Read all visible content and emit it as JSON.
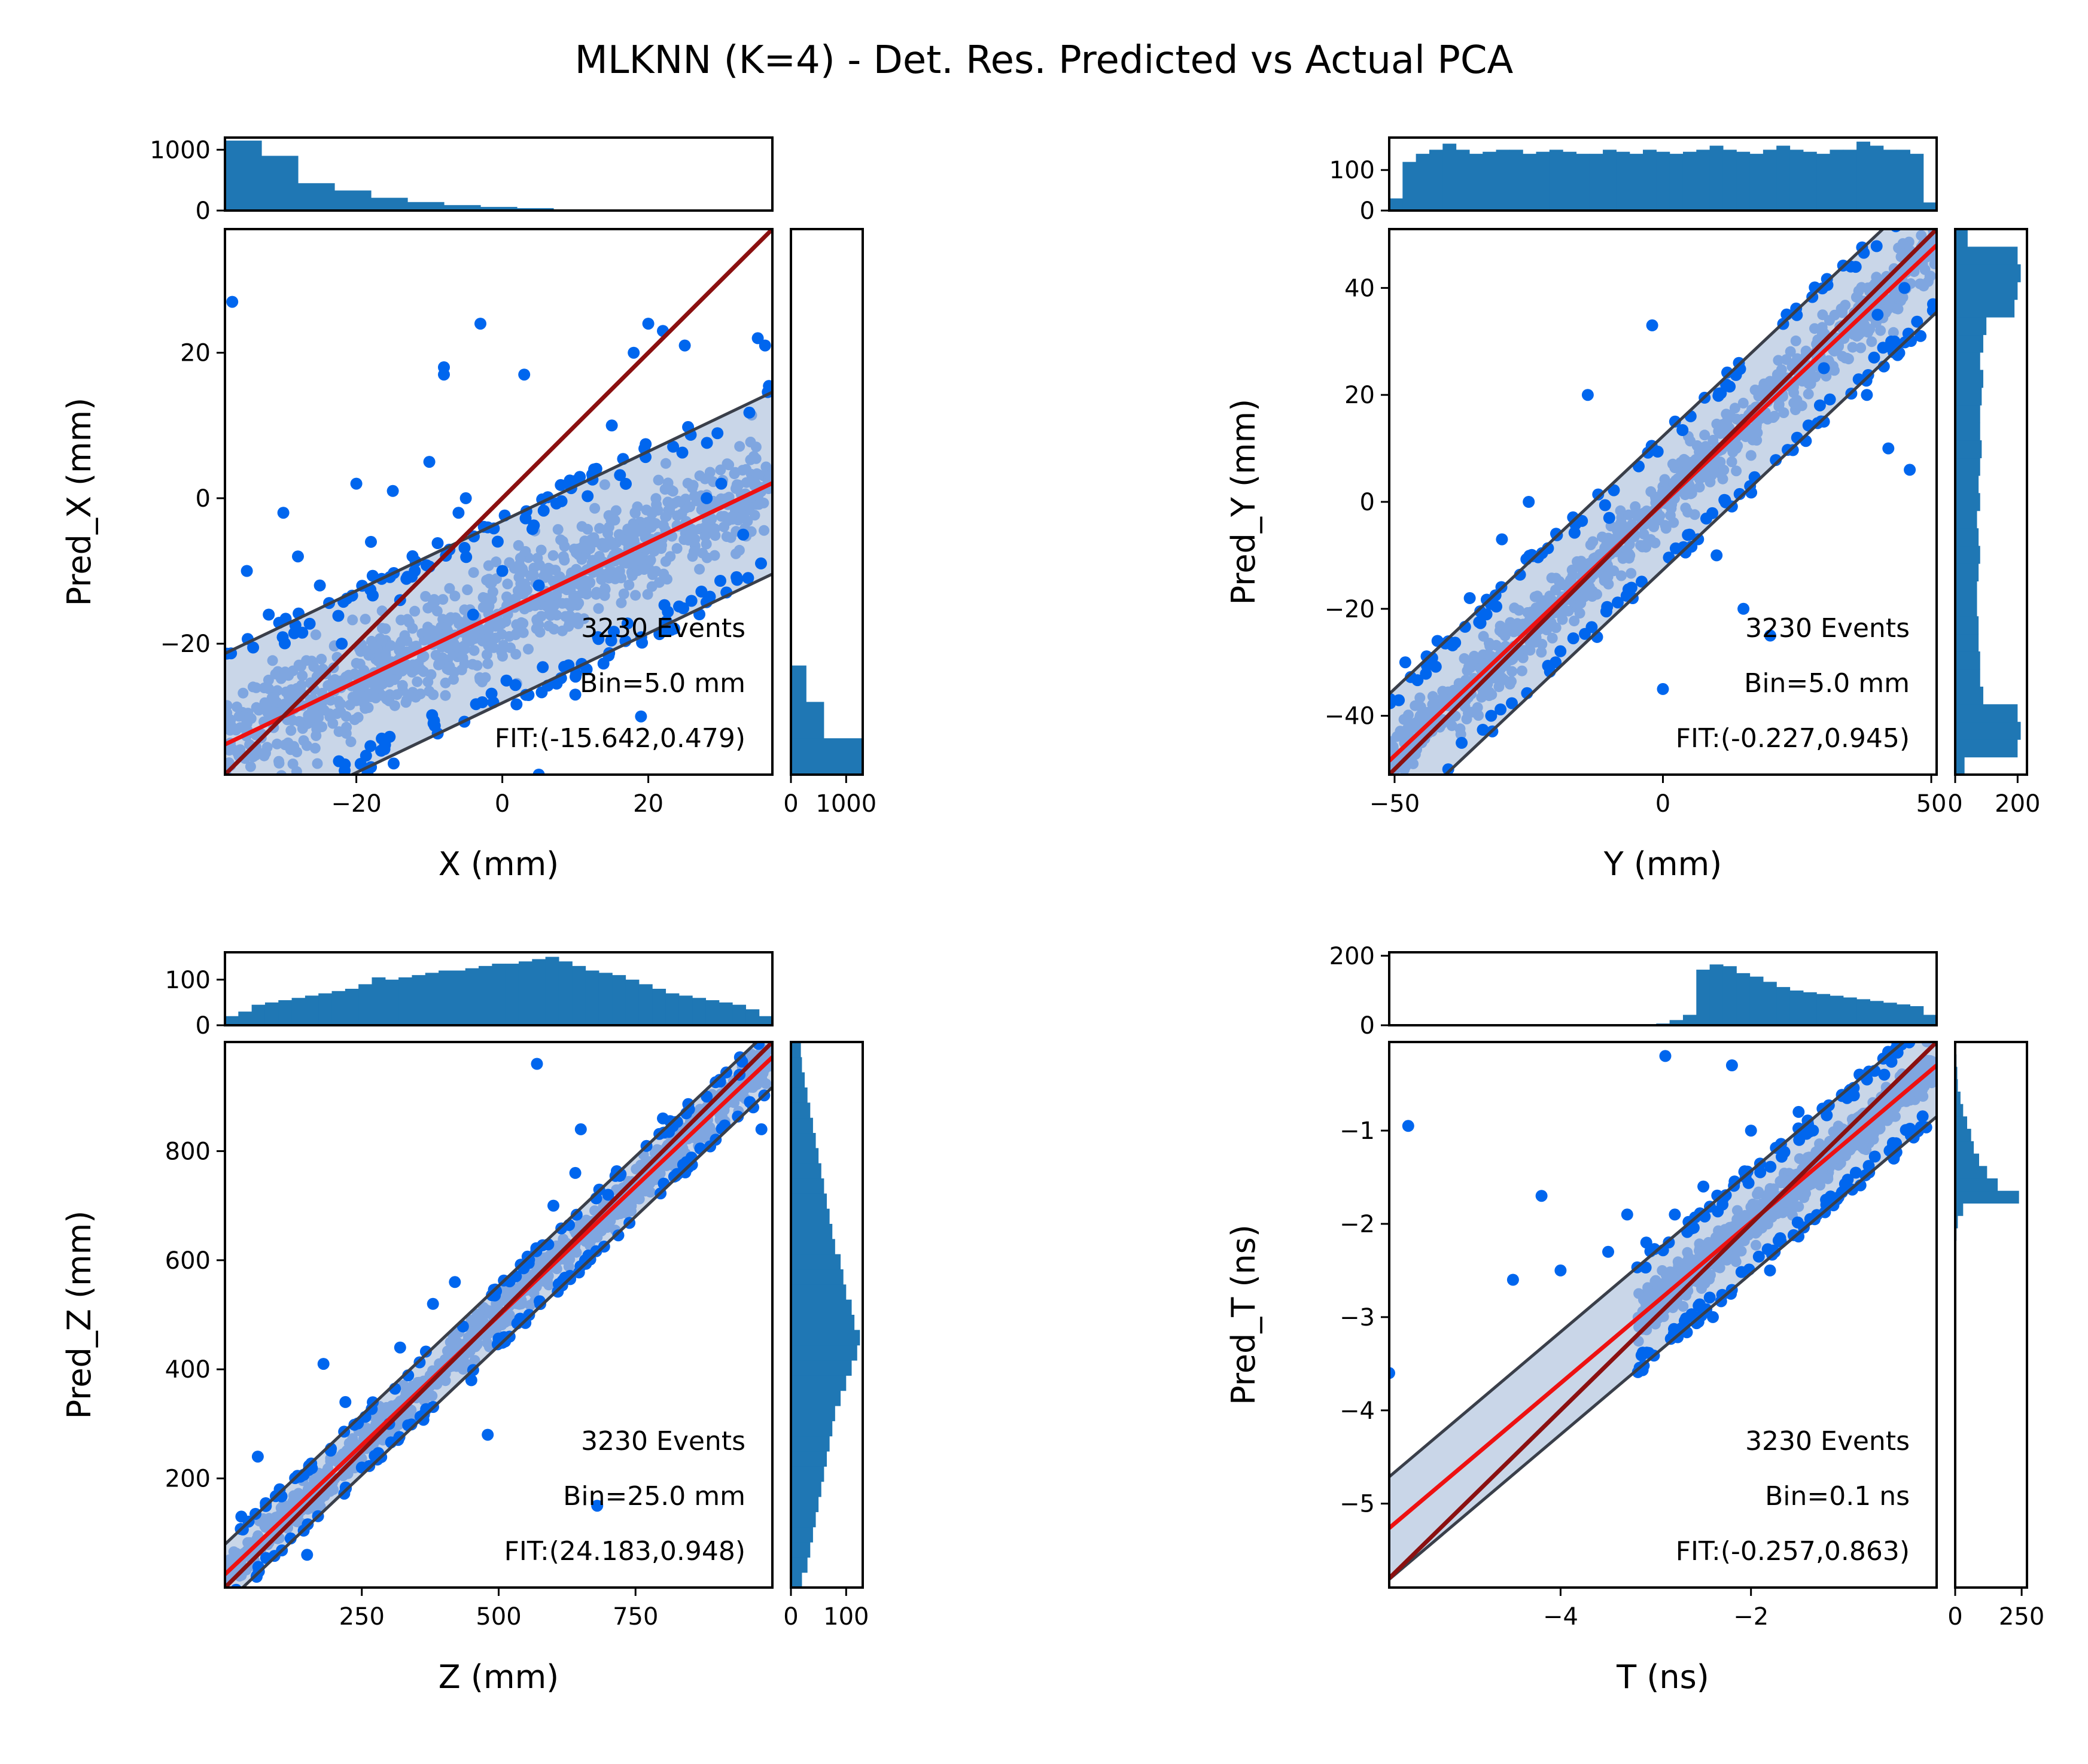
{
  "title": "MLKNN (K=4) - Det. Res. Predicted vs Actual PCA",
  "colors": {
    "hist": "#1f77b4",
    "points": "#0066ee",
    "band_points": "#7fa6e0",
    "band_fill": "#c9d6e8",
    "band_edge": "#3a3f4a",
    "fit_line": "#ee1111",
    "identity_line": "#8b1010"
  },
  "chart_data": [
    {
      "type": "scatter",
      "id": "x",
      "xlabel": "X (mm)",
      "ylabel": "Pred_X (mm)",
      "xlim": [
        -38,
        37
      ],
      "ylim": [
        -38,
        37
      ],
      "xticks": [
        -20,
        0,
        20
      ],
      "yticks": [
        -20,
        0,
        20
      ],
      "annotation": [
        "3230 Events",
        "Bin=5.0 mm",
        "FIT:(-15.642,0.479)"
      ],
      "fit": {
        "intercept": -15.642,
        "slope": 0.479
      },
      "band_halfwidth": 12.5,
      "top_hist": {
        "ylim": [
          0,
          1200
        ],
        "yticks": [
          0,
          1000
        ],
        "values": [
          1150,
          900,
          450,
          330,
          210,
          140,
          90,
          60,
          40,
          20,
          8,
          4,
          2,
          1,
          0
        ]
      },
      "right_hist": {
        "xlim": [
          0,
          1300
        ],
        "xticks": [
          0,
          1000
        ],
        "values": [
          1300,
          600,
          280,
          0,
          0,
          0,
          0,
          0,
          0,
          0,
          0,
          0,
          0,
          0,
          0
        ]
      },
      "spread": 5,
      "outliers": [
        [
          -37,
          27
        ],
        [
          -30,
          -2
        ],
        [
          -25,
          -12
        ],
        [
          -20,
          2
        ],
        [
          -18,
          -6
        ],
        [
          -15,
          1
        ],
        [
          -12,
          -10
        ],
        [
          -10,
          5
        ],
        [
          -8,
          18
        ],
        [
          -8,
          17
        ],
        [
          -6,
          -2
        ],
        [
          -5,
          0
        ],
        [
          -3,
          24
        ],
        [
          -2,
          -4
        ],
        [
          0,
          -10
        ],
        [
          3,
          17
        ],
        [
          5,
          -12
        ],
        [
          5,
          -38
        ],
        [
          10,
          -27
        ],
        [
          15,
          10
        ],
        [
          18,
          20
        ],
        [
          19,
          -30
        ],
        [
          20,
          24
        ],
        [
          22,
          23
        ],
        [
          25,
          21
        ],
        [
          28,
          0
        ],
        [
          30,
          2
        ],
        [
          35,
          22
        ],
        [
          36,
          21
        ],
        [
          33,
          -5
        ],
        [
          -35,
          -10
        ],
        [
          -32,
          -16
        ],
        [
          -28,
          -8
        ],
        [
          -22,
          -20
        ],
        [
          -14,
          -14
        ],
        [
          -4,
          -16
        ]
      ]
    },
    {
      "type": "scatter",
      "id": "y",
      "xlabel": "Y (mm)",
      "ylabel": "Pred_Y (mm)",
      "xlim": [
        -51,
        51
      ],
      "ylim": [
        -51,
        51
      ],
      "xticks": [
        -50,
        0,
        50
      ],
      "yticks": [
        -40,
        -20,
        0,
        20,
        40
      ],
      "annotation": [
        "3230 Events",
        "Bin=5.0 mm",
        "FIT:(-0.227,0.945)"
      ],
      "fit": {
        "intercept": -0.227,
        "slope": 0.945
      },
      "band_halfwidth": 12.5,
      "top_hist": {
        "ylim": [
          0,
          180
        ],
        "yticks": [
          0,
          100
        ],
        "values": [
          30,
          120,
          140,
          150,
          165,
          150,
          140,
          145,
          150,
          150,
          140,
          145,
          150,
          145,
          140,
          140,
          150,
          145,
          140,
          150,
          145,
          140,
          145,
          150,
          160,
          150,
          145,
          140,
          150,
          160,
          150,
          145,
          140,
          150,
          150,
          170,
          160,
          150,
          150,
          140,
          20
        ]
      },
      "right_hist": {
        "xlim": [
          0,
          230
        ],
        "xticks": [
          0,
          200
        ],
        "values": [
          30,
          200,
          210,
          200,
          90,
          80,
          80,
          75,
          75,
          70,
          70,
          75,
          80,
          75,
          70,
          80,
          75,
          80,
          85,
          80,
          80,
          85,
          90,
          80,
          90,
          100,
          190,
          200,
          210,
          200,
          40
        ]
      },
      "spread": 4,
      "outliers": [
        [
          -48,
          -30
        ],
        [
          -42,
          -26
        ],
        [
          -36,
          -18
        ],
        [
          -30,
          -7
        ],
        [
          -25,
          0
        ],
        [
          -14,
          20
        ],
        [
          -2,
          33
        ],
        [
          -10,
          -3
        ],
        [
          10,
          -10
        ],
        [
          20,
          -25
        ],
        [
          25,
          12
        ],
        [
          30,
          25
        ],
        [
          35,
          44
        ],
        [
          40,
          35
        ],
        [
          45,
          40
        ],
        [
          46,
          6
        ],
        [
          48,
          31
        ],
        [
          -40,
          -50
        ],
        [
          -32,
          -40
        ],
        [
          -20,
          -30
        ],
        [
          0,
          -35
        ],
        [
          15,
          -20
        ],
        [
          30,
          15
        ],
        [
          38,
          20
        ],
        [
          42,
          10
        ]
      ]
    },
    {
      "type": "scatter",
      "id": "z",
      "xlabel": "Z (mm)",
      "ylabel": "Pred_Z (mm)",
      "xlim": [
        0,
        1000
      ],
      "ylim": [
        0,
        1000
      ],
      "xticks": [
        250,
        500,
        750
      ],
      "yticks": [
        200,
        400,
        600,
        800
      ],
      "annotation": [
        "3230 Events",
        "Bin=25.0 mm",
        "FIT:(24.183,0.948)"
      ],
      "fit": {
        "intercept": 24.183,
        "slope": 0.948
      },
      "band_halfwidth": 55,
      "top_hist": {
        "ylim": [
          0,
          160
        ],
        "yticks": [
          0,
          100
        ],
        "values": [
          20,
          30,
          45,
          50,
          55,
          60,
          65,
          70,
          75,
          80,
          90,
          105,
          100,
          105,
          110,
          115,
          120,
          120,
          125,
          130,
          135,
          135,
          140,
          145,
          150,
          140,
          130,
          120,
          115,
          110,
          100,
          90,
          80,
          70,
          65,
          60,
          55,
          50,
          45,
          35,
          20
        ]
      },
      "right_hist": {
        "xlim": [
          0,
          130
        ],
        "xticks": [
          0,
          100
        ],
        "values": [
          20,
          30,
          35,
          40,
          45,
          50,
          55,
          60,
          65,
          70,
          75,
          80,
          90,
          100,
          110,
          120,
          125,
          115,
          110,
          100,
          95,
          90,
          80,
          75,
          70,
          65,
          60,
          55,
          50,
          45,
          40,
          35,
          30,
          25,
          20,
          18
        ]
      },
      "spread": 25,
      "outliers": [
        [
          30,
          130
        ],
        [
          60,
          240
        ],
        [
          100,
          180
        ],
        [
          120,
          90
        ],
        [
          180,
          410
        ],
        [
          220,
          340
        ],
        [
          320,
          440
        ],
        [
          380,
          520
        ],
        [
          420,
          560
        ],
        [
          480,
          280
        ],
        [
          520,
          460
        ],
        [
          570,
          960
        ],
        [
          600,
          700
        ],
        [
          640,
          760
        ],
        [
          650,
          840
        ],
        [
          680,
          150
        ],
        [
          700,
          720
        ],
        [
          800,
          860
        ],
        [
          880,
          900
        ],
        [
          940,
          940
        ],
        [
          980,
          840
        ],
        [
          250,
          220
        ],
        [
          450,
          380
        ],
        [
          300,
          300
        ],
        [
          150,
          60
        ]
      ]
    },
    {
      "type": "scatter",
      "id": "t",
      "xlabel": "T (ns)",
      "ylabel": "Pred_T (ns)",
      "xlim": [
        -5.8,
        -0.05
      ],
      "ylim": [
        -5.9,
        -0.05
      ],
      "xticks": [
        -4,
        -2
      ],
      "yticks": [
        -5,
        -4,
        -3,
        -2,
        -1
      ],
      "annotation": [
        "3230 Events",
        "Bin=0.1 ns",
        "FIT:(-0.257,0.863)"
      ],
      "fit": {
        "intercept": -0.257,
        "slope": 0.863
      },
      "band_halfwidth": 0.55,
      "points_range": [
        -3.2,
        -0.1
      ],
      "top_hist": {
        "ylim": [
          0,
          210
        ],
        "yticks": [
          0,
          200
        ],
        "values": [
          0,
          0,
          0,
          0,
          0,
          0,
          0,
          0,
          0,
          0,
          0,
          0,
          0,
          0,
          0,
          0,
          0,
          0,
          0,
          2,
          5,
          15,
          30,
          160,
          175,
          170,
          150,
          140,
          125,
          110,
          100,
          95,
          90,
          85,
          80,
          75,
          70,
          65,
          60,
          55,
          30
        ]
      },
      "right_hist": {
        "xlim": [
          0,
          270
        ],
        "xticks": [
          0,
          250
        ],
        "values": [
          0,
          0,
          0,
          0,
          0,
          0,
          0,
          0,
          0,
          0,
          0,
          0,
          0,
          0,
          0,
          0,
          0,
          0,
          0,
          0,
          0,
          0,
          0,
          0,
          0,
          0,
          0,
          0,
          5,
          10,
          30,
          240,
          160,
          120,
          90,
          70,
          60,
          45,
          30,
          20,
          10,
          8,
          5,
          3
        ]
      },
      "spread": 0.15,
      "outliers": [
        [
          -5.8,
          -3.6
        ],
        [
          -5.6,
          -0.95
        ],
        [
          -4.5,
          -2.6
        ],
        [
          -4.2,
          -1.7
        ],
        [
          -4.0,
          -2.5
        ],
        [
          -3.5,
          -2.3
        ],
        [
          -2.9,
          -0.2
        ],
        [
          -2.8,
          -1.9
        ],
        [
          -2.5,
          -1.6
        ],
        [
          -2.2,
          -0.3
        ],
        [
          -2.0,
          -1.0
        ],
        [
          -1.5,
          -0.8
        ],
        [
          -0.5,
          -1.3
        ],
        [
          -0.6,
          -0.4
        ],
        [
          -2.4,
          -3.0
        ],
        [
          -1.8,
          -2.5
        ],
        [
          -3.1,
          -2.2
        ],
        [
          -3.3,
          -1.9
        ]
      ]
    }
  ]
}
